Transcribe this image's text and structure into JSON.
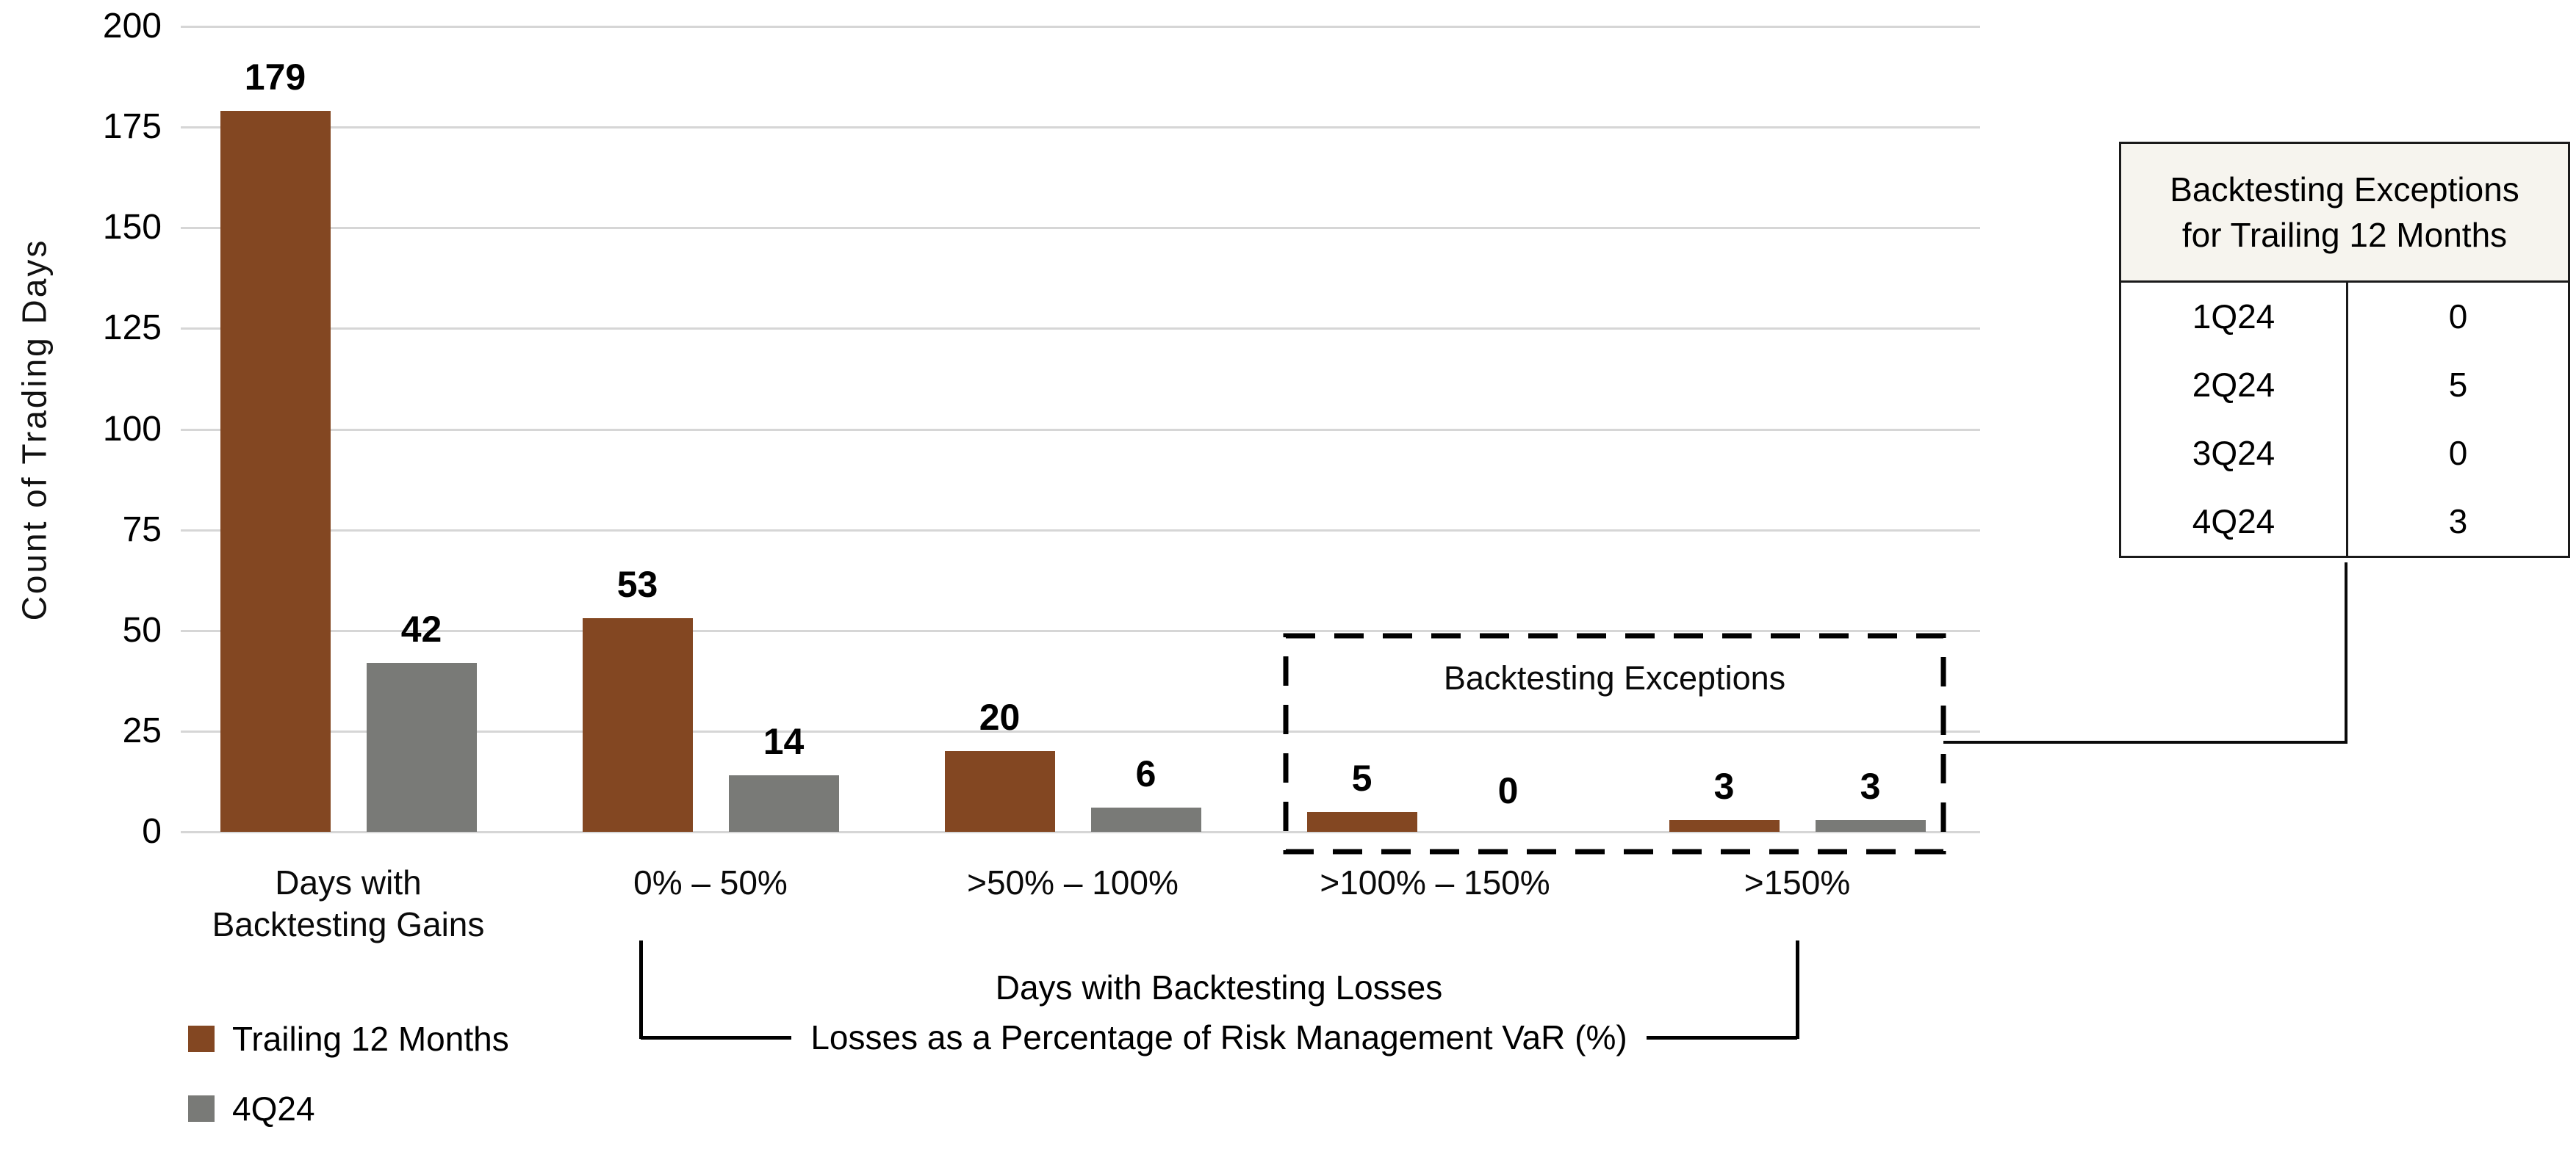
{
  "chart_data": {
    "type": "bar",
    "title": "",
    "ylabel": "Count of Trading Days",
    "xlabel": "",
    "ylim": [
      0,
      200
    ],
    "y_ticks": [
      200,
      175,
      150,
      125,
      100,
      75,
      50,
      25,
      0
    ],
    "grid": true,
    "legend_position": "bottom-left",
    "categories": [
      [
        "Days with",
        "Backtesting Gains"
      ],
      [
        "0% – 50%"
      ],
      [
        ">50% – 100%"
      ],
      [
        ">100% – 150%"
      ],
      [
        ">150%"
      ]
    ],
    "series": [
      {
        "name": "Trailing 12 Months",
        "color": "#834722",
        "values": [
          179,
          53,
          20,
          5,
          3
        ]
      },
      {
        "name": "4Q24",
        "color": "#797a77",
        "values": [
          42,
          14,
          6,
          0,
          3
        ]
      }
    ]
  },
  "annotations": {
    "dashed_box_label": "Backtesting Exceptions",
    "x_group_line1": "Days with Backtesting Losses",
    "x_group_line2": "Losses as a Percentage of Risk Management VaR (%)"
  },
  "exceptions_table": {
    "header_line1": "Backtesting Exceptions",
    "header_line2": "for Trailing 12 Months",
    "rows": [
      {
        "quarter": "1Q24",
        "count": "0"
      },
      {
        "quarter": "2Q24",
        "count": "5"
      },
      {
        "quarter": "3Q24",
        "count": "0"
      },
      {
        "quarter": "4Q24",
        "count": "3"
      }
    ]
  },
  "colors": {
    "trailing_12_months": "#834722",
    "q4_24": "#797a77",
    "gridline": "#d6d6d6",
    "table_header_bg": "#f6f4ee",
    "line_black": "#000000"
  }
}
